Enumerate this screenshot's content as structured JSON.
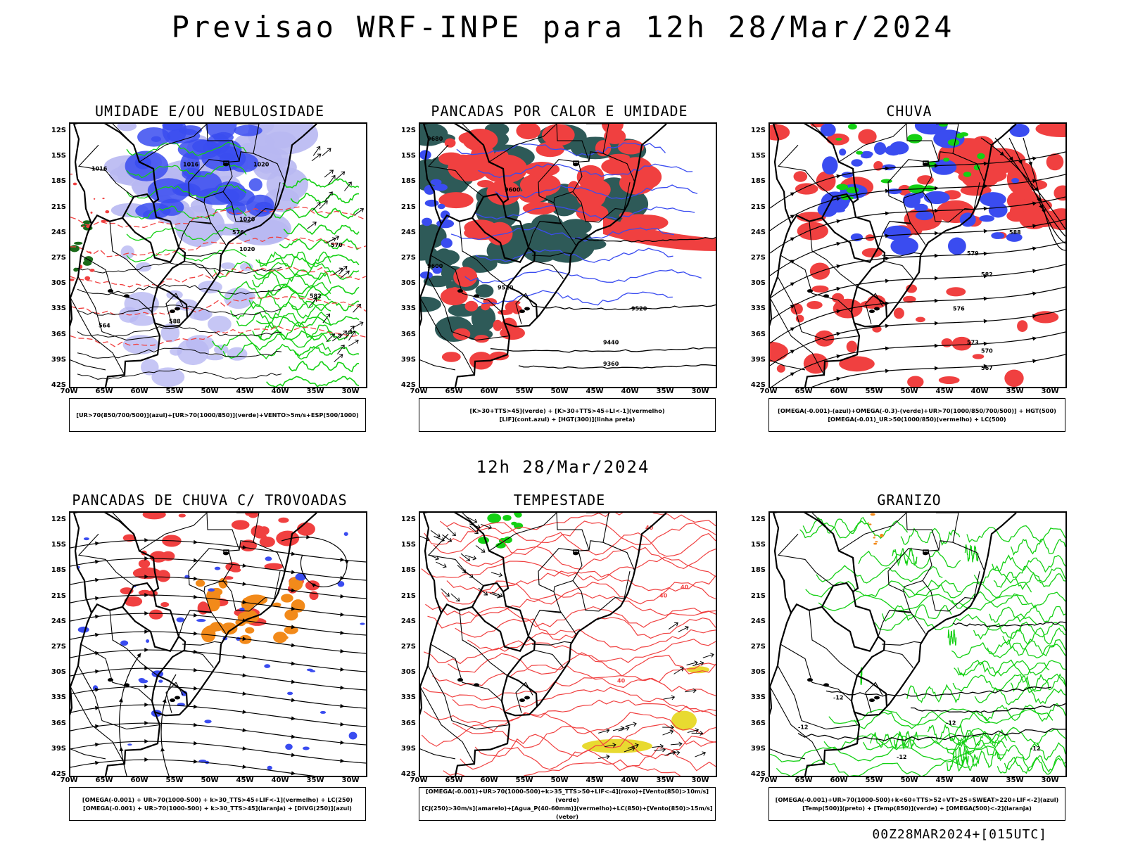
{
  "header": {
    "title": "Previsao WRF-INPE  para 12h 28/Mar/2024",
    "subtitle": "12h 28/Mar/2024",
    "footer": "00Z28MAR2024+[015UTC]"
  },
  "axes": {
    "lat_labels": [
      "12S",
      "15S",
      "18S",
      "21S",
      "24S",
      "27S",
      "30S",
      "33S",
      "36S",
      "39S",
      "42S"
    ],
    "lon_labels": [
      "70W",
      "65W",
      "60W",
      "55W",
      "50W",
      "45W",
      "40W",
      "35W",
      "30W"
    ]
  },
  "colors": {
    "blue": "#3a4cf0",
    "lightblue": "#b8b8f2",
    "green": "#14d014",
    "red": "#f04040",
    "darkgreen": "#2e5a58",
    "orange": "#f28a1a",
    "yellow": "#e8da30",
    "black": "#000000"
  },
  "panels": [
    {
      "title": "UMIDADE E/OU NEBULOSIDADE",
      "legend": [
        "[UR>70(850/700/500)](azul)+[UR>70(1000/850)](verde)+VENTO>5m/s+ESP(500/1000)"
      ],
      "contour_labels": [
        "1016",
        "1016",
        "1020",
        "1020",
        "1020",
        "570",
        "576",
        "582",
        "588",
        "564"
      ]
    },
    {
      "title": "PANCADAS POR CALOR E UMIDADE",
      "legend": [
        "[K>30+TTS>45](verde) + [K>30+TTS>45+LI<-1](vermelho)",
        "[LIF](cont.azul) + [HGT(300)](linha preta)"
      ],
      "contour_labels": [
        "9680",
        "9600",
        "9600",
        "9520",
        "9520",
        "9440",
        "9360"
      ]
    },
    {
      "title": "CHUVA",
      "legend": [
        "[OMEGA(-0.001)-(azul)+OMEGA(-0.3)-(verde)+UR>70(1000/850/700/500)] + HGT(500)",
        "[OMEGA(-0.01)_UR>50(1000/850)(vermelho) + LC(500)"
      ],
      "contour_labels": [
        "588",
        "582",
        "579",
        "576",
        "573",
        "570",
        "567"
      ]
    },
    {
      "title": "PANCADAS DE CHUVA C/ TROVOADAS",
      "legend": [
        "[OMEGA(-0.001) + UR>70(1000-500) + k>30_TTS>45+LIF<-1](vermelho) + LC(250)",
        "[OMEGA(-0.001) + UR>70(1000-500) + k>30_TTS>45](laranja) + [DIVG(250)](azul)"
      ],
      "contour_labels": []
    },
    {
      "title": "TEMPESTADE",
      "legend": [
        "[OMEGA(-0.001)+UR>70(1000-500)+k>35_TTS>50+LIF<-4](roxo)+[Vento(850)>10m/s](verde)",
        "[CJ(250)>30m/s](amarelo)+[Agua_P(40-60mm)](vermelho)+LC(850)+[Vento(850)>15m/s](vetor)"
      ],
      "contour_labels": [
        "40",
        "40",
        "40",
        "40"
      ]
    },
    {
      "title": "GRANIZO",
      "legend": [
        "[OMEGA(-0.001)+UR>70(1000-500)+k<60+TTS>52+VT>25+SWEAT>220+LIF<-2](azul)",
        "[Temp(500)](preto) + [Temp(850)](verde) + [OMEGA(500)<-2](laranja)"
      ],
      "contour_labels": [
        "-12",
        "-12",
        "-12",
        "-12",
        "-12"
      ]
    }
  ]
}
